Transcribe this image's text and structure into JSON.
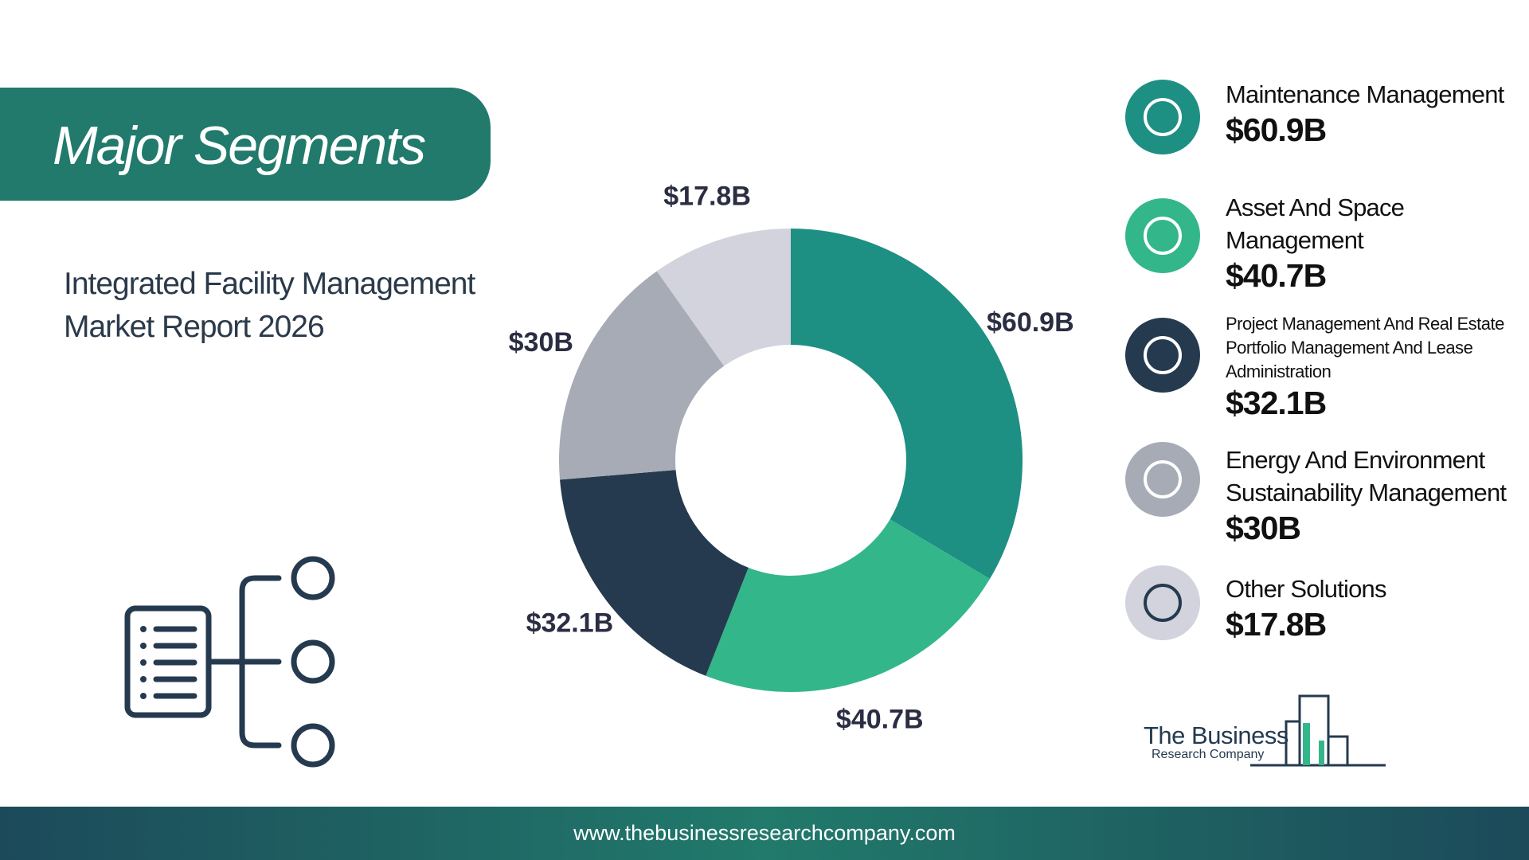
{
  "header": {
    "title": "Major Segments",
    "subtitle": "Integrated Facility Management Market Report 2026"
  },
  "chart_data": {
    "type": "pie",
    "categories": [
      "Maintenance Management",
      "Asset And Space Management",
      "Project Management And Real Estate Portfolio Management And Lease Administration",
      "Energy And Environment Sustainability Management",
      "Other Solutions"
    ],
    "values": [
      60.9,
      40.7,
      32.1,
      30,
      17.8
    ],
    "value_labels": [
      "$60.9B",
      "$40.7B",
      "$32.1B",
      "$30B",
      "$17.8B"
    ],
    "colors": [
      "#1e8f83",
      "#33b78a",
      "#253a4f",
      "#a7abb6",
      "#d2d3dd"
    ]
  },
  "logo": {
    "line1": "The Business",
    "line2": "Research Company"
  },
  "footer": {
    "url": "www.thebusinessresearchcompany.com"
  }
}
